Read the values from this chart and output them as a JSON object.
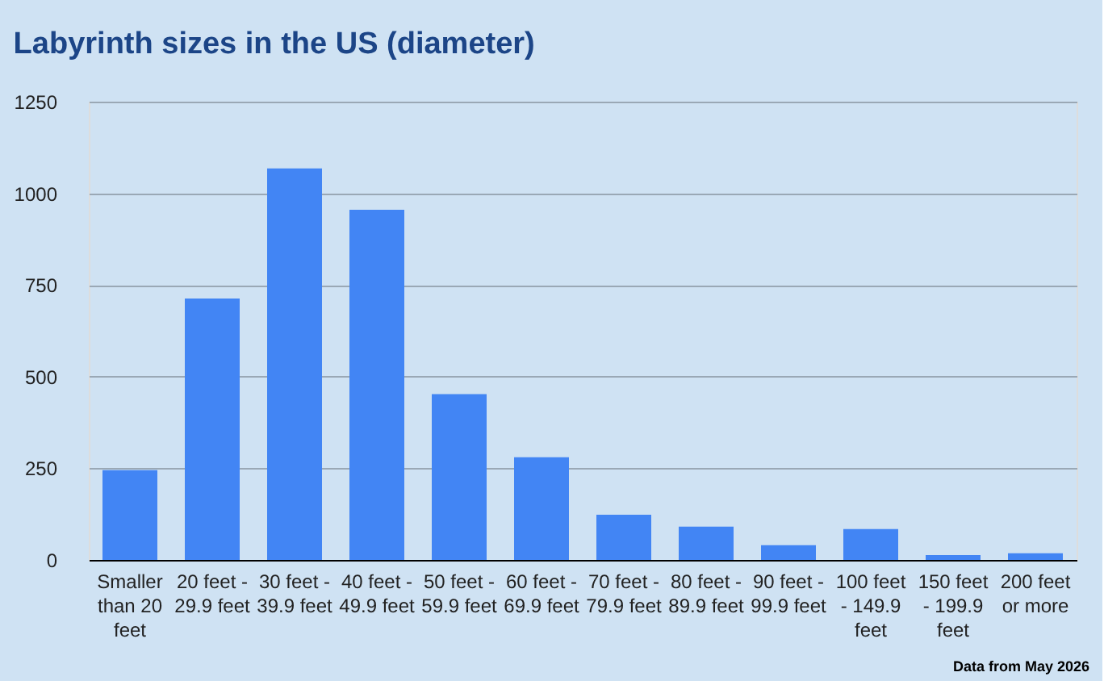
{
  "chart_data": {
    "type": "bar",
    "title": "Labyrinth sizes in the US (diameter)",
    "categories": [
      "Smaller than 20 feet",
      "20 feet - 29.9 feet",
      "30 feet - 39.9 feet",
      "40 feet - 49.9 feet",
      "50 feet - 59.9 feet",
      "60 feet - 69.9 feet",
      "70 feet - 79.9 feet",
      "80 feet - 89.9 feet",
      "90 feet - 99.9 feet",
      "100 feet - 149.9 feet",
      "150 feet - 199.9 feet",
      "200 feet or more"
    ],
    "values": [
      245,
      713,
      1068,
      955,
      452,
      280,
      123,
      91,
      40,
      84,
      13,
      18
    ],
    "color": "#4285f4",
    "ylim": [
      0,
      1250
    ],
    "yticks": [
      0,
      250,
      500,
      750,
      1000,
      1250
    ],
    "grid": "y",
    "annotations": [
      "Data from May 2026"
    ]
  }
}
